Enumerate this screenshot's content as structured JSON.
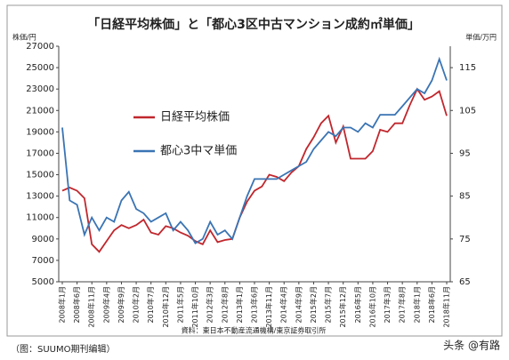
{
  "chart_data": {
    "type": "line",
    "title": "「日経平均株価」と「都心3区中古マンション成約㎡単価」",
    "y_label": "株価/円",
    "y2_label": "単価/万円",
    "source": "資料：東日本不動産流通機構/東京証券取引所",
    "caption": "（图：SUUMO期刊编辑）",
    "watermark": "头条 @有路",
    "categories": [
      "2008年1月",
      null,
      "2008年6月",
      null,
      "2008年11月",
      null,
      "2009年4月",
      null,
      "2009年9月",
      null,
      "2010年2月",
      null,
      "2010年7月",
      null,
      "2010年12月",
      null,
      "2011年5月",
      null,
      "2011年10月",
      null,
      "2012年3月",
      null,
      "2012年8月",
      null,
      "2013年1月",
      null,
      "2013年6月",
      null,
      "2013年11月",
      null,
      "2014年4月",
      null,
      "2014年9月",
      null,
      "2015年2月",
      null,
      "2015年7月",
      null,
      "2015年12月",
      null,
      "2016年5月",
      null,
      "2016年10月",
      null,
      "2017年3月",
      null,
      "2017年8月",
      null,
      "2018年1月",
      null,
      "2018年6月",
      null,
      "2018年11月"
    ],
    "series": [
      {
        "name": "日経平均株価",
        "color": "#c0272d",
        "values": [
          13500,
          13800,
          13500,
          12800,
          8500,
          7800,
          8800,
          9800,
          10300,
          10000,
          10300,
          10800,
          9600,
          9400,
          10200,
          10000,
          9600,
          9300,
          8800,
          8500,
          9800,
          8700,
          8900,
          9000,
          11000,
          12500,
          13500,
          13900,
          15000,
          14800,
          14400,
          15200,
          15800,
          17400,
          18500,
          19800,
          20500,
          18000,
          19500,
          16500,
          16500,
          16500,
          17200,
          19200,
          19000,
          19800,
          19800,
          21500,
          23000,
          22000,
          22300,
          22800,
          20500
        ]
      },
      {
        "name": "都心3中マ単価",
        "color": "#3a74b4",
        "axis": "y2",
        "values": [
          101,
          84,
          83,
          76,
          80,
          77,
          80,
          79,
          84,
          86,
          82,
          81,
          79,
          80,
          81,
          77,
          79,
          77,
          74,
          75,
          79,
          76,
          77,
          75,
          80,
          85,
          89,
          89,
          89,
          89,
          90,
          91,
          92,
          93,
          96,
          98,
          100,
          99,
          101,
          101,
          100,
          102,
          101,
          104,
          104,
          104,
          106,
          108,
          110,
          109,
          112,
          117,
          112
        ]
      }
    ],
    "ylim": [
      5000,
      27000
    ],
    "yticks": [
      5000,
      7000,
      9000,
      11000,
      13000,
      15000,
      17000,
      19000,
      21000,
      23000,
      25000,
      27000
    ],
    "y2lim": [
      65,
      120
    ],
    "y2ticks": [
      65,
      75,
      85,
      95,
      105,
      115
    ],
    "grid": false,
    "legend": "upper left"
  }
}
